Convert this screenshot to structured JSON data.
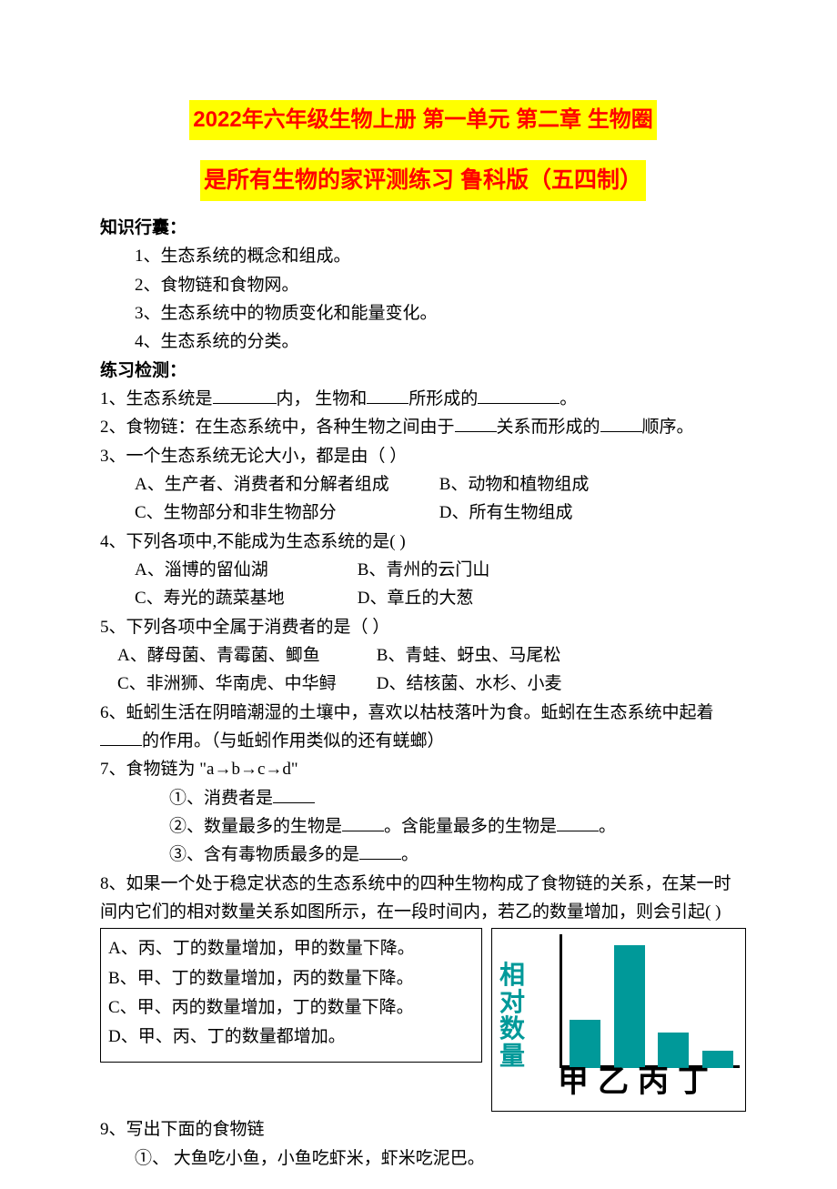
{
  "title_line1": "2022年六年级生物上册 第一单元 第二章 生物圈",
  "title_line2": "是所有生物的家评测练习 鲁科版（五四制）",
  "section1_head": "知识行囊：",
  "knowledge": [
    "1、生态系统的概念和组成。",
    "2、食物链和食物网。",
    "3、生态系统中的物质变化和能量变化。",
    "4、生态系统的分类。"
  ],
  "section2_head": "练习检测：",
  "q1_pre": "1、生态系统是",
  "q1_mid1": "内，  生物和",
  "q1_mid2": "所形成的",
  "q1_end": "。",
  "q2_pre": "2、食物链：在生态系统中，各种生物之间由于",
  "q2_mid": "关系而形成的",
  "q2_end": "顺序。",
  "q3": "3、一个生态系统无论大小，都是由（         ）",
  "q3a": "A、生产者、消费者和分解者组成",
  "q3b": "B、动物和植物组成",
  "q3c": "C、生物部分和非生物部分",
  "q3d": "D、所有生物组成",
  "q4": "4、下列各项中,不能成为生态系统的是(       )",
  "q4a": "A、淄博的留仙湖",
  "q4b": "B、青州的云门山",
  "q4c": "C、寿光的蔬菜基地",
  "q4d": "D、章丘的大葱",
  "q5": "5、下列各项中全属于消费者的是（         ）",
  "q5a": "A、酵母菌、青霉菌、鲫鱼",
  "q5b": "B、青蛙、蚜虫、马尾松",
  "q5c": "C、非洲狮、华南虎、中华鲟",
  "q5d": "D、结核菌、水杉、小麦",
  "q6_pre": "6、蚯蚓生活在阴暗潮湿的土壤中，喜欢以枯枝落叶为食。蚯蚓在生态系统中起着",
  "q6_end": "的作用。（与蚯蚓作用类似的还有蜣螂）",
  "q7": "7、食物链为 \"a→b→c→d\"",
  "q7_1_pre": "①、消费者是",
  "q7_2_pre": "②、数量最多的生物是",
  "q7_2_mid": "。含能量最多的生物是",
  "q7_2_end": "。",
  "q7_3_pre": "③、含有毒物质最多的是",
  "q7_3_end": "。",
  "q8_line1": "8、如果一个处于稳定状态的生态系统中的四种生物构成了食物链的关系，在某一时",
  "q8_line2": "间内它们的相对数量关系如图所示，在一段时间内，若乙的数量增加，则会引起(        )",
  "q8a": "A、丙、丁的数量增加，甲的数量下降。",
  "q8b": "B、甲、丁的数量增加，丙的数量下降。",
  "q8c": "C、甲、丙的数量增加，丁的数量下降。",
  "q8d": "D、甲、丙、丁的数量都增加。",
  "q9": "9、写出下面的食物链",
  "q9_1": "①、 大鱼吃小鱼，小鱼吃虾米，虾米吃泥巴。",
  "chart": {
    "type": "bar",
    "ylabel": "相对数量",
    "ylabel_color": "#009999",
    "categories": [
      "甲",
      "乙",
      "丙",
      "丁"
    ],
    "values": [
      55,
      140,
      40,
      20
    ],
    "value_max": 150,
    "bar_color": "#009999",
    "axis_color": "#000000",
    "xlabel_color": "#000000",
    "background_color": "#ffffff"
  }
}
